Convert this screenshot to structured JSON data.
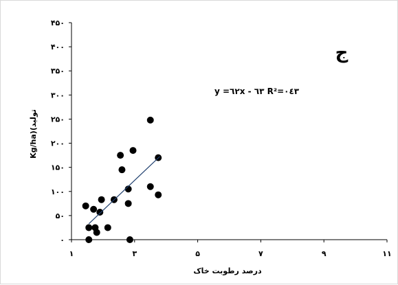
{
  "chart_data": {
    "type": "scatter",
    "title": "",
    "panel_label": "ج",
    "xlabel": "درصد رطوبت خاک",
    "ylabel": "Kg/ha)(تولید",
    "xlim": [
      1,
      11
    ],
    "ylim": [
      0,
      450
    ],
    "x_ticks": [
      1,
      3,
      5,
      7,
      9,
      11
    ],
    "x_tick_labels": [
      "۱",
      "۳",
      "۵",
      "۷",
      "۹",
      "۱۱"
    ],
    "y_ticks": [
      0,
      50,
      100,
      150,
      200,
      250,
      300,
      350,
      400,
      450
    ],
    "y_tick_labels": [
      "۰",
      "۵۰",
      "۱۰۰",
      "۱۵۰",
      "۲۰۰",
      "۲۵۰",
      "۳۰۰",
      "۳۵۰",
      "۴۵۰"
    ],
    "y_tick_labels_full": [
      "۰",
      "۵۰",
      "۱۰۰",
      "۱۵۰",
      "۲۰۰",
      "۲۵۰",
      "۳۰۰",
      "۳۵۰",
      "۴۰۰",
      "۴۵۰"
    ],
    "grid": false,
    "marker_color": "#000000",
    "trendline_color": "#1f3f6e",
    "equation_text": "y =٦٢x -  ٦٣   R²=٠٤٣",
    "trendline": {
      "slope": 62,
      "intercept": -63,
      "x_range": [
        1.55,
        3.8
      ]
    },
    "series": [
      {
        "x": [
          1.45,
          1.55,
          1.55,
          1.7,
          1.75,
          1.8,
          1.9,
          1.95,
          2.15,
          2.35,
          2.55,
          2.6,
          2.8,
          2.8,
          2.85,
          2.95,
          3.5,
          3.5,
          3.75,
          3.75
        ],
        "y": [
          70,
          25,
          0,
          63,
          25,
          15,
          57,
          83,
          25,
          83,
          175,
          145,
          105,
          75,
          0,
          185,
          248,
          110,
          170,
          93
        ]
      }
    ]
  }
}
